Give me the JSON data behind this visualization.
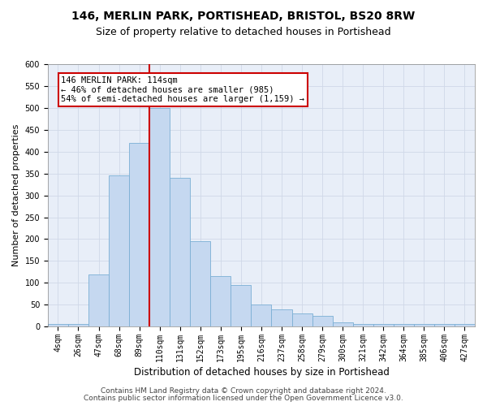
{
  "title1": "146, MERLIN PARK, PORTISHEAD, BRISTOL, BS20 8RW",
  "title2": "Size of property relative to detached houses in Portishead",
  "xlabel": "Distribution of detached houses by size in Portishead",
  "ylabel": "Number of detached properties",
  "categories": [
    "4sqm",
    "26sqm",
    "47sqm",
    "68sqm",
    "89sqm",
    "110sqm",
    "131sqm",
    "152sqm",
    "173sqm",
    "195sqm",
    "216sqm",
    "237sqm",
    "258sqm",
    "279sqm",
    "300sqm",
    "321sqm",
    "342sqm",
    "364sqm",
    "385sqm",
    "406sqm",
    "427sqm"
  ],
  "values": [
    5,
    5,
    120,
    345,
    420,
    500,
    340,
    195,
    115,
    95,
    50,
    40,
    30,
    25,
    10,
    5,
    5,
    5,
    5,
    5,
    5
  ],
  "bar_color": "#c5d8f0",
  "bar_edge_color": "#7bafd4",
  "annotation_line_color": "#cc0000",
  "annotation_box_text": "146 MERLIN PARK: 114sqm\n← 46% of detached houses are smaller (985)\n54% of semi-detached houses are larger (1,159) →",
  "annotation_box_color": "#ffffff",
  "annotation_box_edge_color": "#cc0000",
  "ylim": [
    0,
    600
  ],
  "yticks": [
    0,
    50,
    100,
    150,
    200,
    250,
    300,
    350,
    400,
    450,
    500,
    550,
    600
  ],
  "grid_color": "#d0d8e8",
  "background_color": "#e8eef8",
  "footer1": "Contains HM Land Registry data © Crown copyright and database right 2024.",
  "footer2": "Contains public sector information licensed under the Open Government Licence v3.0.",
  "title1_fontsize": 10,
  "title2_fontsize": 9,
  "xlabel_fontsize": 8.5,
  "ylabel_fontsize": 8,
  "tick_fontsize": 7,
  "footer_fontsize": 6.5,
  "annotation_fontsize": 7.5,
  "vline_bar_index": 5,
  "bar_width": 1.0
}
